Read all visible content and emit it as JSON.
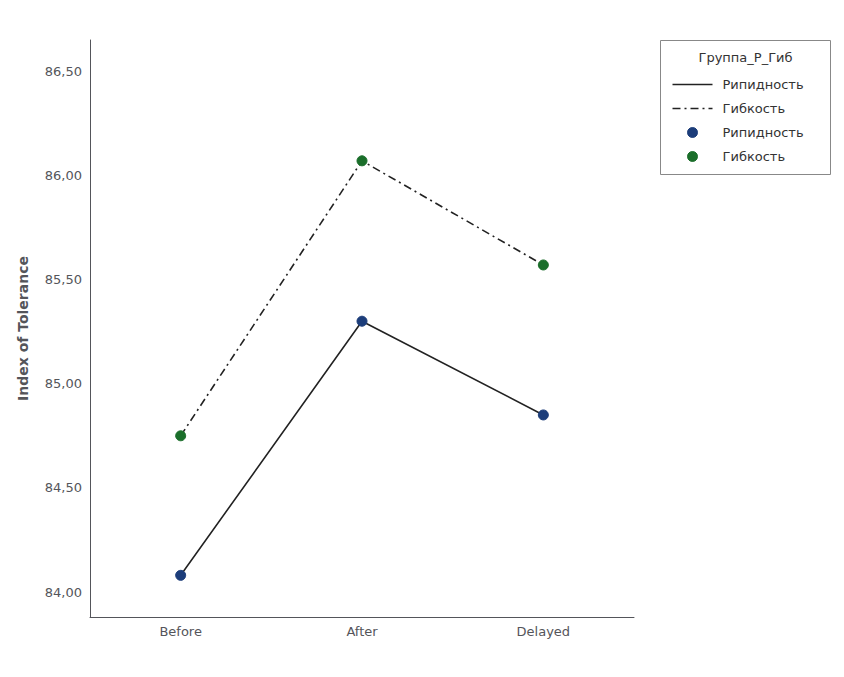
{
  "chart_data": {
    "type": "line",
    "categories": [
      "Before",
      "After",
      "Delayed"
    ],
    "color": "#222222",
    "series": [
      {
        "name": "Рипидность",
        "color": "#1c3d7a",
        "line_style": "solid",
        "marker": "circle",
        "values": [
          84.08,
          85.3,
          84.85
        ]
      },
      {
        "name": "Гибкость",
        "color": "#1a6e2a",
        "line_style": "dashdot",
        "marker": "circle",
        "values": [
          84.75,
          86.07,
          85.57
        ]
      }
    ],
    "ylabel": "Index of Tolerance",
    "ylim": [
      83.88,
      86.65
    ],
    "yticks": [
      {
        "value": 84.0,
        "label": "84,00"
      },
      {
        "value": 84.5,
        "label": "84,50"
      },
      {
        "value": 85.0,
        "label": "85,00"
      },
      {
        "value": 85.5,
        "label": "85,50"
      },
      {
        "value": 86.0,
        "label": "86,00"
      },
      {
        "value": 86.5,
        "label": "86,50"
      }
    ],
    "grid": false,
    "legend": "upper right",
    "legend_title": "Группа_Р_Гиб",
    "legend_entries": [
      {
        "name": "Рипидность",
        "line_style": "solid",
        "color": "#222222"
      },
      {
        "name": "Гибкость",
        "line_style": "dashdot",
        "color": "#222222"
      },
      {
        "name": "Рипидность",
        "marker": "circle",
        "color": "#1c3d7a"
      },
      {
        "name": "Гибкость",
        "marker": "circle",
        "color": "#1a6e2a"
      }
    ]
  }
}
